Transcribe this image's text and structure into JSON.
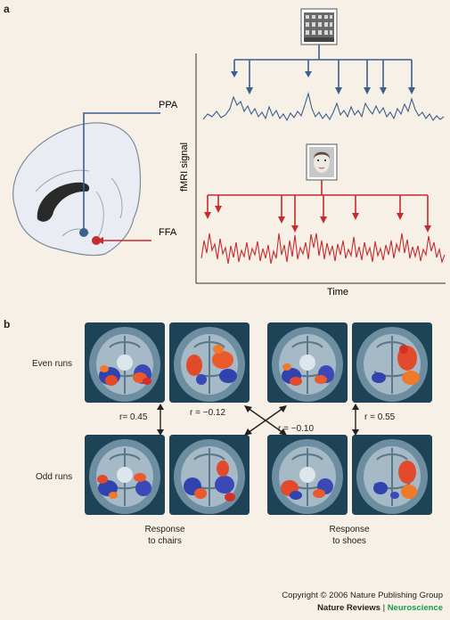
{
  "panel_a": {
    "letter": "a",
    "ppa_label": "PPA",
    "ffa_label": "FFA",
    "y_axis_label": "fMRI signal",
    "x_axis_label": "Time",
    "colors": {
      "ppa": "#3b5f8f",
      "ffa": "#c62b2e",
      "axis": "#333333",
      "brain_fill": "#e9edf3",
      "brain_stroke": "#7d8a99"
    },
    "ppa_stimulus_icon": "building-photo-icon",
    "ffa_stimulus_icon": "face-photo-icon"
  },
  "panel_b": {
    "letter": "b",
    "even_runs_label": "Even runs",
    "odd_runs_label": "Odd runs",
    "corr_chairs": "r= 0.45",
    "corr_cross_upper": "r = −0.12",
    "corr_cross_lower": "r = −0.10",
    "corr_shoes": "r = 0.55",
    "response_chairs_line1": "Response",
    "response_chairs_line2": "to chairs",
    "response_shoes_line1": "Response",
    "response_shoes_line2": "to shoes"
  },
  "footer": {
    "copyright": "Copyright © 2006 Nature Publishing Group",
    "journal": "Nature Reviews",
    "separator": " | ",
    "subject": "Neuroscience"
  }
}
